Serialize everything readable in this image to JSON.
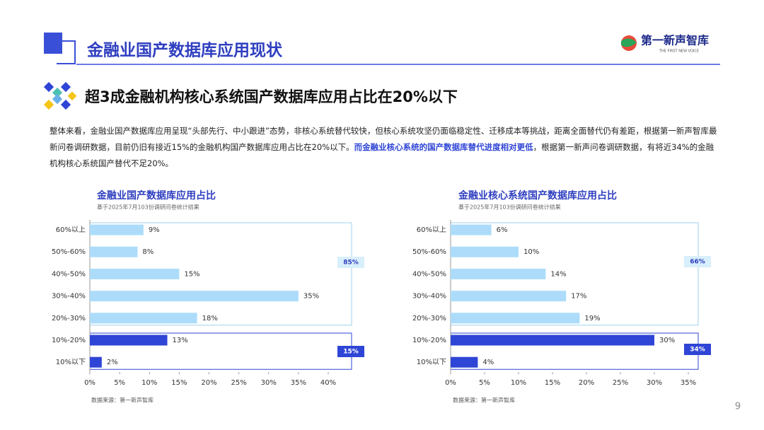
{
  "header": {
    "title": "金融业国产数据库应用现状",
    "logo": "第一新声智库",
    "logo_sub": "THE FIRST NEW VOICE"
  },
  "subtitle": "超3成金融机构核心系统国产数据库应用占比在20%以下",
  "paragraph": {
    "before": "整体来看，金融业国产数据库应用呈现“头部先行、中小跟进”态势，非核心系统替代较快，但核心系统攻坚仍面临稳定性、迁移成本等挑战，距离全面替代仍有差距，根据第一新声智库最新问卷调研数据，目前仍旧有接近15%的金融机构国产数据库应用占比在20%以下。",
    "highlight": "而金融业核心系统的国产数据库替代进度相对更低",
    "after": "，根据第一新声问卷调研数据，有将近34%的金融机构核心系统国产替代不足20%。"
  },
  "page_number": "9",
  "chart_data": [
    {
      "type": "bar",
      "orientation": "horizontal",
      "title": "金融业国产数据库应用占比",
      "subtitle": "基于2025年7月103份调研问卷统计结果",
      "source": "数据来源：第一新声智库",
      "categories": [
        "60%以上",
        "50%-60%",
        "40%-50%",
        "30%-40%",
        "20%-30%",
        "10%-20%",
        "10%以下"
      ],
      "values": [
        9,
        8,
        15,
        35,
        18,
        13,
        2
      ],
      "value_labels": [
        "9%",
        "8%",
        "15%",
        "35%",
        "18%",
        "13%",
        "2%"
      ],
      "colors": [
        "#acdcfa",
        "#acdcfa",
        "#acdcfa",
        "#acdcfa",
        "#acdcfa",
        "#2f45d6",
        "#2f45d6"
      ],
      "xlim": [
        0,
        40
      ],
      "xticks": [
        {
          "value": 0,
          "label": "0%"
        },
        {
          "value": 5,
          "label": "5%"
        },
        {
          "value": 10,
          "label": "10%"
        },
        {
          "value": 15,
          "label": "15%"
        },
        {
          "value": 20,
          "label": "20%"
        },
        {
          "value": 25,
          "label": "25%"
        },
        {
          "value": 30,
          "label": "30%"
        },
        {
          "value": 35,
          "label": "35%"
        },
        {
          "value": 40,
          "label": "40%"
        }
      ],
      "annotations": [
        "85%",
        "15%"
      ]
    },
    {
      "type": "bar",
      "orientation": "horizontal",
      "title": "金融业核心系统国产数据库应用占比",
      "subtitle": "基于2025年7月103份调研问卷统计结果",
      "source": "数据来源：第一新声智库",
      "categories": [
        "60%以上",
        "50%-60%",
        "40%-50%",
        "30%-40%",
        "20%-30%",
        "10%-20%",
        "10%以下"
      ],
      "values": [
        6,
        10,
        14,
        17,
        19,
        30,
        4
      ],
      "value_labels": [
        "6%",
        "10%",
        "14%",
        "17%",
        "19%",
        "30%",
        "4%"
      ],
      "colors": [
        "#acdcfa",
        "#acdcfa",
        "#acdcfa",
        "#acdcfa",
        "#acdcfa",
        "#2f45d6",
        "#2f45d6"
      ],
      "xlim": [
        0,
        35
      ],
      "xticks": [
        {
          "value": 0,
          "label": "0%"
        },
        {
          "value": 5,
          "label": "5%"
        },
        {
          "value": 10,
          "label": "10%"
        },
        {
          "value": 15,
          "label": "15%"
        },
        {
          "value": 20,
          "label": "20%"
        },
        {
          "value": 25,
          "label": "25%"
        },
        {
          "value": 30,
          "label": "30%"
        },
        {
          "value": 35,
          "label": "35%"
        }
      ],
      "annotations": [
        "66%",
        "34%"
      ]
    }
  ]
}
